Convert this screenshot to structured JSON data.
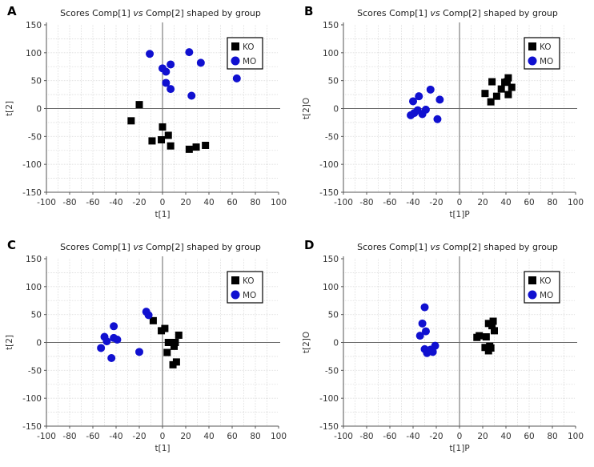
{
  "chart_data": [
    {
      "type": "scatter",
      "panel": "A",
      "title": "Scores Comp[1] vs Comp[2] shaped by group",
      "title_pre": "Scores Comp[1] ",
      "title_vs": "vs",
      "title_post": " Comp[2] shaped by group",
      "xlabel": "t[1]",
      "ylabel": "t[2]",
      "xlim": [
        -100,
        100
      ],
      "ylim": [
        -150,
        150
      ],
      "xticks": [
        -100,
        -80,
        -60,
        -40,
        -20,
        0,
        20,
        40,
        60,
        80,
        100
      ],
      "yticks": [
        -150,
        -100,
        -50,
        0,
        50,
        100,
        150
      ],
      "grid": true,
      "legend_position": "top-right",
      "series": [
        {
          "name": "KO",
          "marker": "square",
          "color": "#000000",
          "points": [
            [
              -27,
              -22
            ],
            [
              -20,
              7
            ],
            [
              0,
              -33
            ],
            [
              -9,
              -58
            ],
            [
              -1,
              -56
            ],
            [
              5,
              -48
            ],
            [
              7,
              -67
            ],
            [
              23,
              -73
            ],
            [
              29,
              -69
            ],
            [
              37,
              -66
            ]
          ]
        },
        {
          "name": "MO",
          "marker": "circle",
          "color": "#1010d0",
          "points": [
            [
              -11,
              98
            ],
            [
              0,
              72
            ],
            [
              3,
              66
            ],
            [
              7,
              79
            ],
            [
              3,
              46
            ],
            [
              7,
              35
            ],
            [
              23,
              101
            ],
            [
              33,
              82
            ],
            [
              25,
              23
            ],
            [
              64,
              54
            ]
          ]
        }
      ]
    },
    {
      "type": "scatter",
      "panel": "B",
      "title": "Scores Comp[1] vs Comp[2] shaped by group",
      "title_pre": "Scores Comp[1] ",
      "title_vs": "vs",
      "title_post": " Comp[2] shaped by group",
      "xlabel": "t[1]P",
      "ylabel": "t[2]O",
      "xlim": [
        -100,
        100
      ],
      "ylim": [
        -150,
        150
      ],
      "xticks": [
        -100,
        -80,
        -60,
        -40,
        -20,
        0,
        20,
        40,
        60,
        80,
        100
      ],
      "yticks": [
        -150,
        -100,
        -50,
        0,
        50,
        100,
        150
      ],
      "grid": true,
      "legend_position": "top-right",
      "series": [
        {
          "name": "KO",
          "marker": "square",
          "color": "#000000",
          "points": [
            [
              22,
              27
            ],
            [
              28,
              48
            ],
            [
              27,
              12
            ],
            [
              32,
              22
            ],
            [
              36,
              35
            ],
            [
              39,
              47
            ],
            [
              42,
              55
            ],
            [
              41,
              48
            ],
            [
              45,
              38
            ],
            [
              42,
              25
            ]
          ]
        },
        {
          "name": "MO",
          "marker": "circle",
          "color": "#1010d0",
          "points": [
            [
              -40,
              13
            ],
            [
              -35,
              22
            ],
            [
              -25,
              34
            ],
            [
              -17,
              16
            ],
            [
              -42,
              -12
            ],
            [
              -39,
              -8
            ],
            [
              -36,
              -3
            ],
            [
              -32,
              -10
            ],
            [
              -29,
              -2
            ],
            [
              -19,
              -19
            ]
          ]
        }
      ]
    },
    {
      "type": "scatter",
      "panel": "C",
      "title": "Scores Comp[1] vs Comp[2] shaped by group",
      "title_pre": "Scores Comp[1] ",
      "title_vs": "vs",
      "title_post": " Comp[2] shaped by group",
      "xlabel": "t[1]",
      "ylabel": "t[2]",
      "xlim": [
        -100,
        100
      ],
      "ylim": [
        -150,
        150
      ],
      "xticks": [
        -100,
        -80,
        -60,
        -40,
        -20,
        0,
        20,
        40,
        60,
        80,
        100
      ],
      "yticks": [
        -150,
        -100,
        -50,
        0,
        50,
        100,
        150
      ],
      "grid": true,
      "legend_position": "top-right",
      "series": [
        {
          "name": "KO",
          "marker": "square",
          "color": "#000000",
          "points": [
            [
              -8,
              39
            ],
            [
              -1,
              21
            ],
            [
              2,
              25
            ],
            [
              5,
              0
            ],
            [
              8,
              0
            ],
            [
              11,
              0
            ],
            [
              10,
              -7
            ],
            [
              14,
              13
            ],
            [
              4,
              -18
            ],
            [
              9,
              -40
            ],
            [
              12,
              -35
            ]
          ]
        },
        {
          "name": "MO",
          "marker": "circle",
          "color": "#1010d0",
          "points": [
            [
              -14,
              55
            ],
            [
              -12,
              49
            ],
            [
              -42,
              29
            ],
            [
              -50,
              10
            ],
            [
              -48,
              2
            ],
            [
              -42,
              8
            ],
            [
              -39,
              5
            ],
            [
              -53,
              -10
            ],
            [
              -44,
              -28
            ],
            [
              -20,
              -17
            ]
          ]
        }
      ]
    },
    {
      "type": "scatter",
      "panel": "D",
      "title": "Scores Comp[1] vs Comp[2] shaped by group",
      "title_pre": "Scores Comp[1] ",
      "title_vs": "vs",
      "title_post": " Comp[2] shaped by group",
      "xlabel": "t[1]P",
      "ylabel": "t[2]O",
      "xlim": [
        -100,
        100
      ],
      "ylim": [
        -150,
        150
      ],
      "xticks": [
        -100,
        -80,
        -60,
        -40,
        -20,
        0,
        20,
        40,
        60,
        80,
        100
      ],
      "yticks": [
        -150,
        -100,
        -50,
        0,
        50,
        100,
        150
      ],
      "grid": true,
      "legend_position": "top-right",
      "series": [
        {
          "name": "KO",
          "marker": "square",
          "color": "#000000",
          "points": [
            [
              15,
              9
            ],
            [
              17,
              12
            ],
            [
              23,
              10
            ],
            [
              25,
              34
            ],
            [
              29,
              38
            ],
            [
              28,
              30
            ],
            [
              30,
              21
            ],
            [
              22,
              -9
            ],
            [
              26,
              -7
            ],
            [
              27,
              -10
            ],
            [
              25,
              -15
            ]
          ]
        },
        {
          "name": "MO",
          "marker": "circle",
          "color": "#1010d0",
          "points": [
            [
              -30,
              63
            ],
            [
              -32,
              34
            ],
            [
              -29,
              20
            ],
            [
              -34,
              12
            ],
            [
              -30,
              -12
            ],
            [
              -28,
              -19
            ],
            [
              -25,
              -13
            ],
            [
              -23,
              -17
            ],
            [
              -21,
              -6
            ],
            [
              -27,
              -15
            ]
          ]
        }
      ]
    }
  ]
}
